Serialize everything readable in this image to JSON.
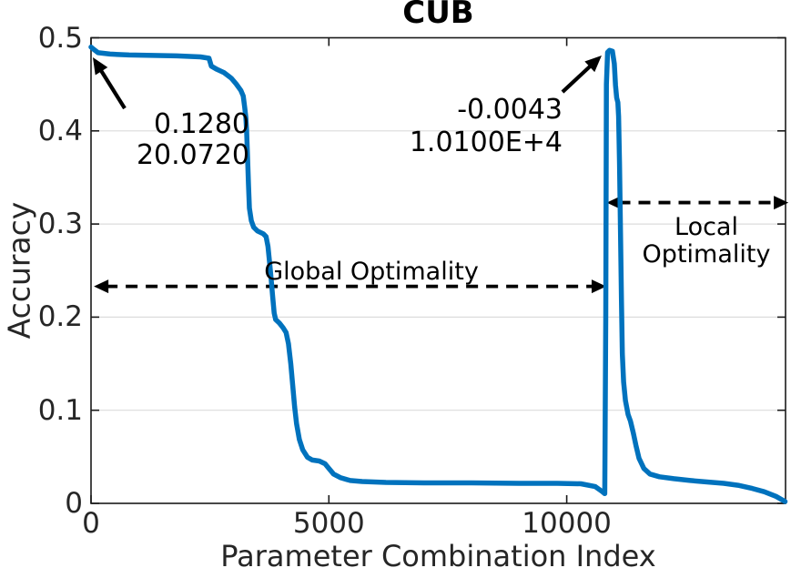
{
  "chart_data": {
    "type": "line",
    "title": "CUB",
    "xlabel": "Parameter Combination Index",
    "ylabel": "Accuracy",
    "xlim": [
      0,
      14600
    ],
    "ylim": [
      0,
      0.5
    ],
    "grid": "horizontal-only",
    "grid_y": [
      0.1,
      0.2,
      0.3,
      0.4
    ],
    "x_ticks": [
      {
        "value": 0,
        "label": "0"
      },
      {
        "value": 5000,
        "label": "5000"
      },
      {
        "value": 10000,
        "label": "10000"
      }
    ],
    "y_ticks": [
      {
        "value": 0,
        "label": "0"
      },
      {
        "value": 0.1,
        "label": "0.1"
      },
      {
        "value": 0.2,
        "label": "0.2"
      },
      {
        "value": 0.3,
        "label": "0.3"
      },
      {
        "value": 0.4,
        "label": "0.4"
      },
      {
        "value": 0.5,
        "label": "0.5"
      }
    ],
    "line_color": "#0072BD",
    "series": [
      {
        "name": "accuracy-vs-parameter-combination-index",
        "points": [
          [
            0,
            0.49
          ],
          [
            60,
            0.4875
          ],
          [
            150,
            0.484
          ],
          [
            400,
            0.4825
          ],
          [
            800,
            0.4815
          ],
          [
            1300,
            0.481
          ],
          [
            1800,
            0.4805
          ],
          [
            2300,
            0.4795
          ],
          [
            2480,
            0.478
          ],
          [
            2530,
            0.4695
          ],
          [
            2650,
            0.466
          ],
          [
            2800,
            0.4625
          ],
          [
            2950,
            0.4565
          ],
          [
            3050,
            0.4505
          ],
          [
            3150,
            0.4435
          ],
          [
            3200,
            0.4375
          ],
          [
            3230,
            0.4255
          ],
          [
            3255,
            0.4145
          ],
          [
            3270,
            0.401
          ],
          [
            3290,
            0.3735
          ],
          [
            3310,
            0.342
          ],
          [
            3330,
            0.317
          ],
          [
            3370,
            0.3035
          ],
          [
            3420,
            0.2965
          ],
          [
            3500,
            0.2925
          ],
          [
            3620,
            0.2895
          ],
          [
            3680,
            0.2865
          ],
          [
            3720,
            0.276
          ],
          [
            3760,
            0.2555
          ],
          [
            3790,
            0.2385
          ],
          [
            3820,
            0.2215
          ],
          [
            3850,
            0.2045
          ],
          [
            3880,
            0.1975
          ],
          [
            3960,
            0.1935
          ],
          [
            4040,
            0.1885
          ],
          [
            4100,
            0.1835
          ],
          [
            4150,
            0.1715
          ],
          [
            4200,
            0.1495
          ],
          [
            4240,
            0.1265
          ],
          [
            4280,
            0.1035
          ],
          [
            4320,
            0.0855
          ],
          [
            4380,
            0.0685
          ],
          [
            4450,
            0.0575
          ],
          [
            4550,
            0.0495
          ],
          [
            4650,
            0.0465
          ],
          [
            4800,
            0.0455
          ],
          [
            4920,
            0.0425
          ],
          [
            5000,
            0.0375
          ],
          [
            5100,
            0.0315
          ],
          [
            5250,
            0.0275
          ],
          [
            5450,
            0.0245
          ],
          [
            5700,
            0.0235
          ],
          [
            6200,
            0.0225
          ],
          [
            7000,
            0.022
          ],
          [
            8000,
            0.022
          ],
          [
            9000,
            0.0215
          ],
          [
            9800,
            0.0215
          ],
          [
            10300,
            0.021
          ],
          [
            10600,
            0.018
          ],
          [
            10750,
            0.0125
          ],
          [
            10800,
            0.0105
          ],
          [
            10820,
            0.2
          ],
          [
            10835,
            0.45
          ],
          [
            10860,
            0.4845
          ],
          [
            10900,
            0.4865
          ],
          [
            10960,
            0.4855
          ],
          [
            11000,
            0.472
          ],
          [
            11025,
            0.449
          ],
          [
            11050,
            0.4355
          ],
          [
            11075,
            0.4305
          ],
          [
            11090,
            0.4155
          ],
          [
            11110,
            0.3655
          ],
          [
            11130,
            0.2905
          ],
          [
            11150,
            0.2205
          ],
          [
            11170,
            0.1605
          ],
          [
            11195,
            0.1305
          ],
          [
            11235,
            0.1105
          ],
          [
            11290,
            0.0955
          ],
          [
            11340,
            0.0885
          ],
          [
            11400,
            0.0755
          ],
          [
            11455,
            0.0625
          ],
          [
            11520,
            0.0485
          ],
          [
            11620,
            0.0375
          ],
          [
            11750,
            0.0315
          ],
          [
            11950,
            0.0285
          ],
          [
            12250,
            0.0265
          ],
          [
            12600,
            0.0245
          ],
          [
            12950,
            0.023
          ],
          [
            13300,
            0.0215
          ],
          [
            13600,
            0.0195
          ],
          [
            13900,
            0.016
          ],
          [
            14150,
            0.0125
          ],
          [
            14400,
            0.0075
          ],
          [
            14590,
            0.002
          ]
        ]
      }
    ],
    "annotations": {
      "start_point": {
        "line1": "0.1280",
        "line2": "20.0720",
        "arrow_from": [
          708,
          0.4242
        ],
        "arrow_to": [
          38,
          0.479
        ]
      },
      "peak_point": {
        "line1": "-0.0043",
        "line2": "1.0100E+4",
        "arrow_from": [
          9911,
          0.4418
        ],
        "arrow_to": [
          10734,
          0.4809
        ]
      },
      "global_optimality": {
        "label": "Global Optimality",
        "y_value": 0.233,
        "x_start": 60,
        "x_end": 10830
      },
      "local_optimality": {
        "label_line1": "Local",
        "label_line2": "Optimality",
        "y_value": 0.323,
        "x_start": 10840,
        "x_end": 14660
      }
    }
  }
}
